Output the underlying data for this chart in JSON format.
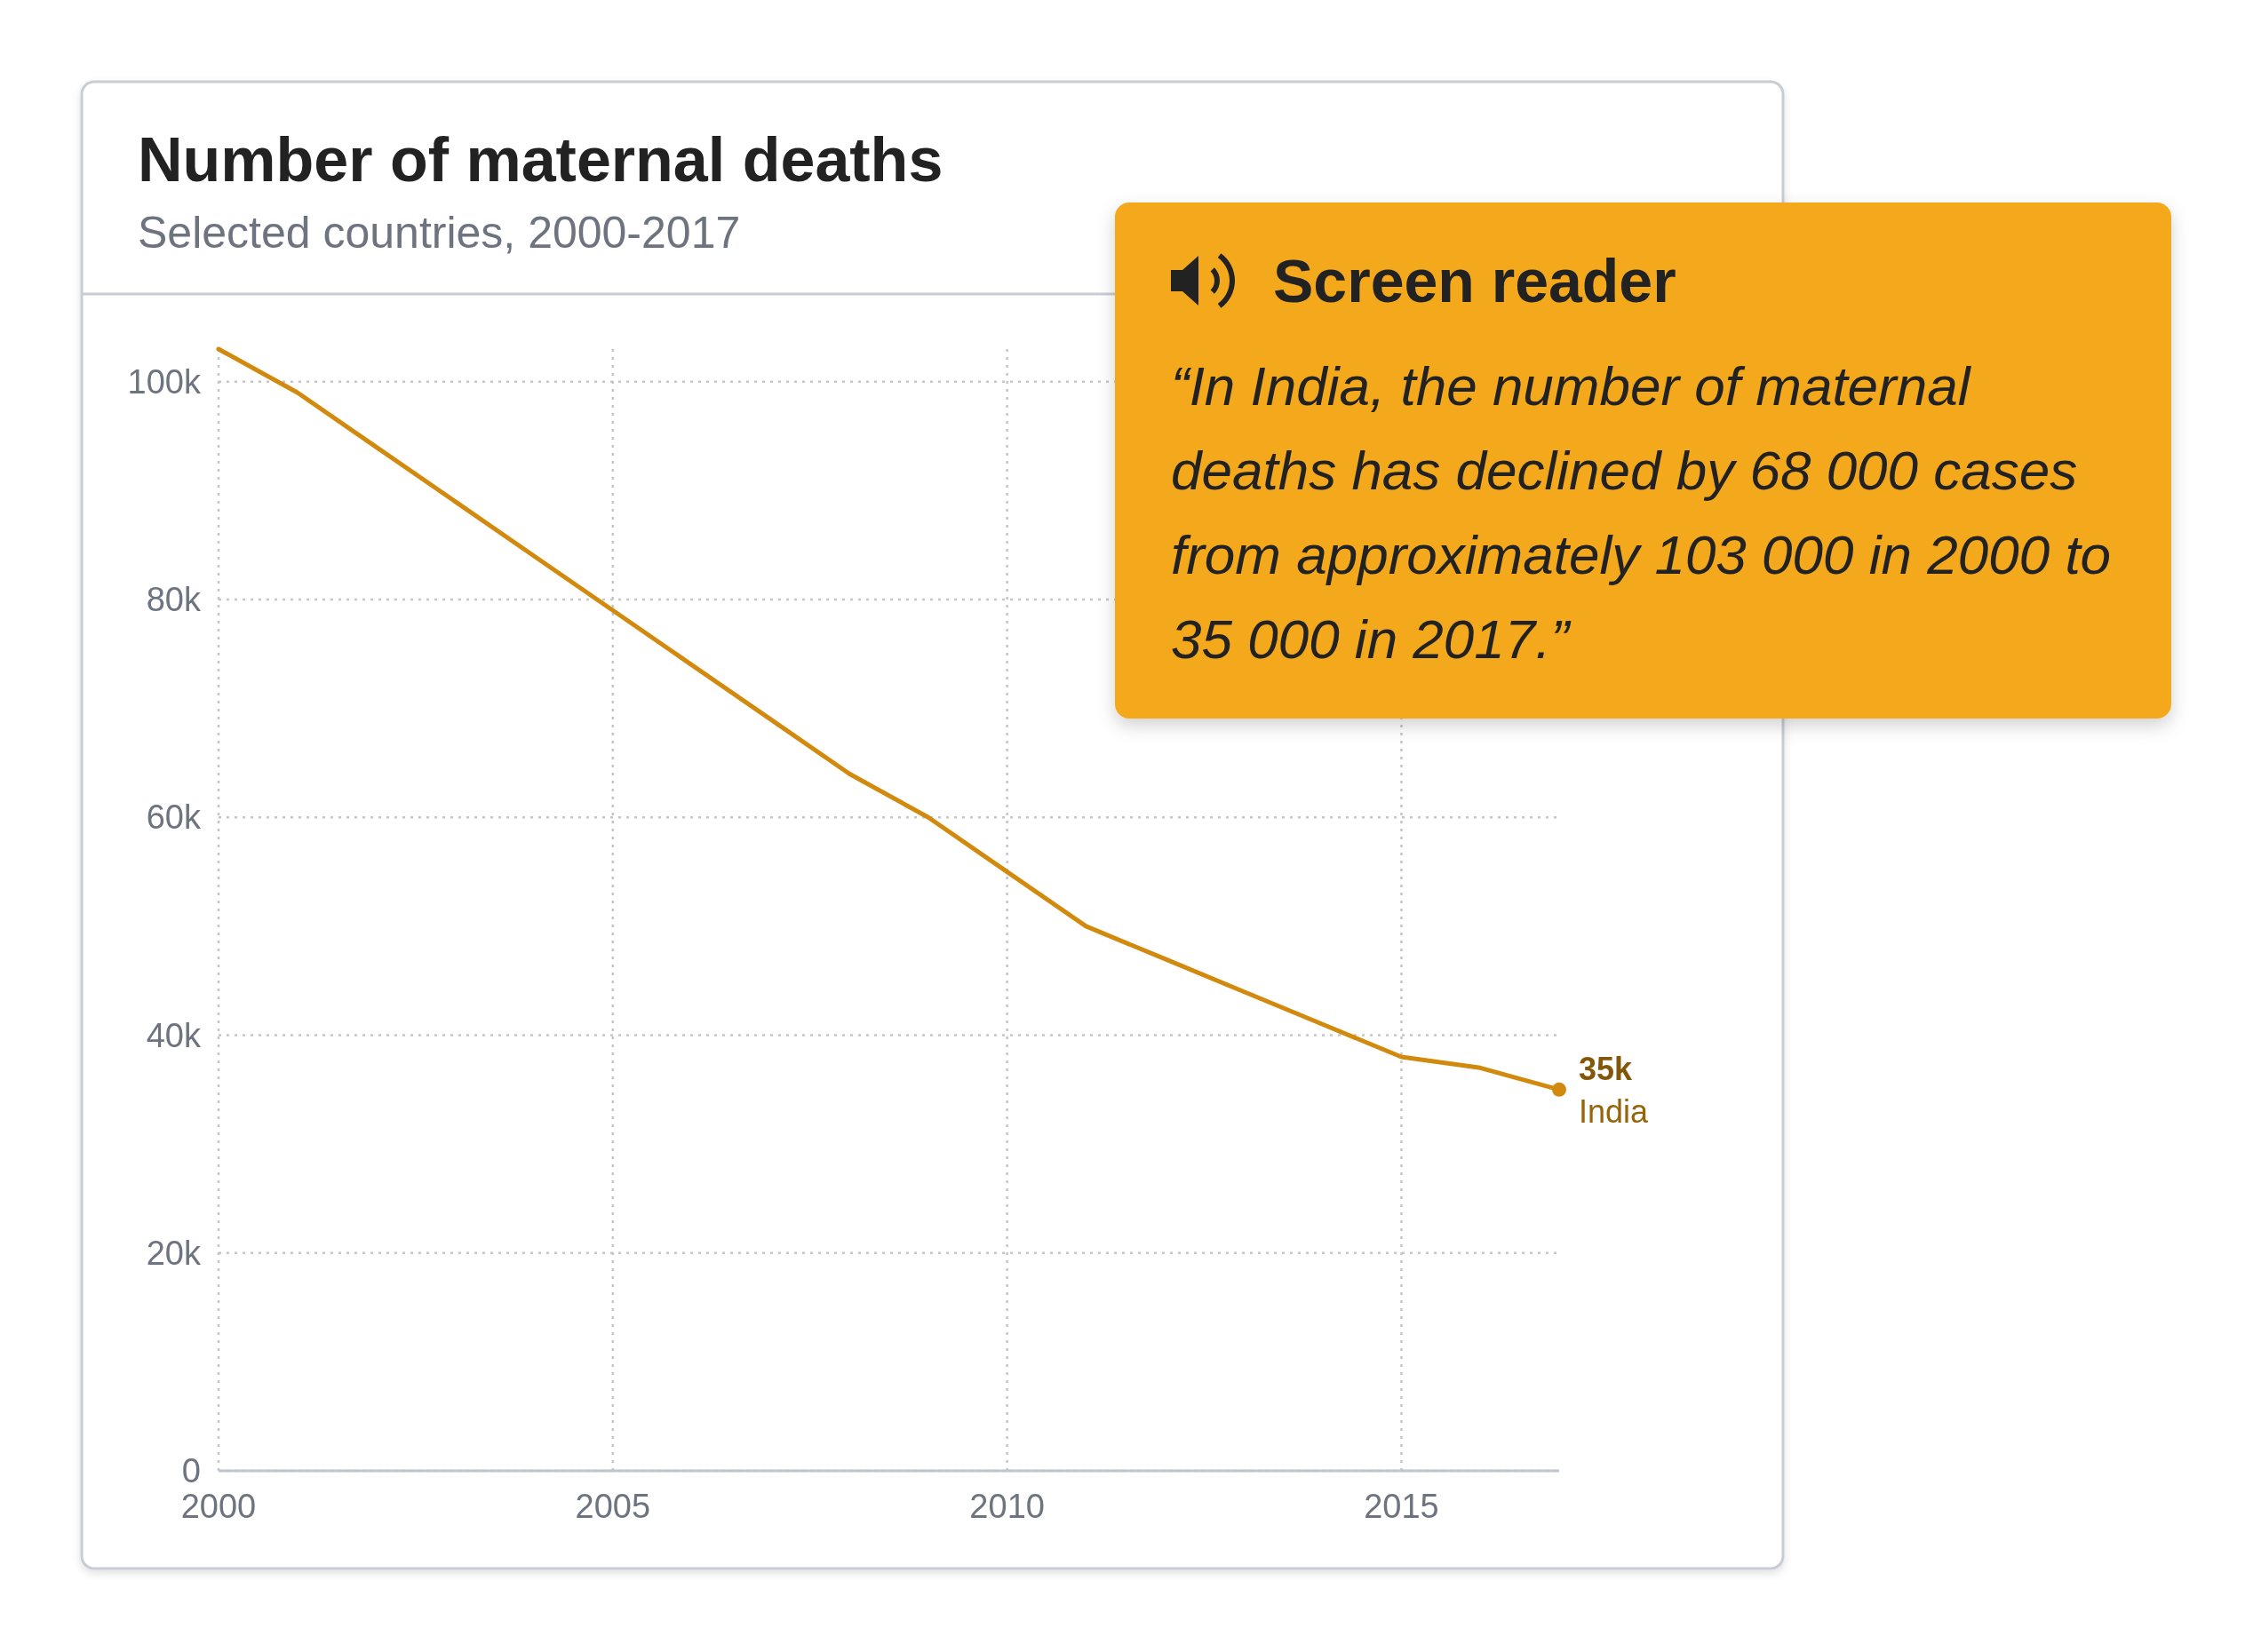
{
  "chart_data": {
    "type": "line",
    "title": "Number of maternal deaths",
    "subtitle": "Selected countries, 2000-2017",
    "x": [
      2000,
      2001,
      2002,
      2003,
      2004,
      2005,
      2006,
      2007,
      2008,
      2009,
      2010,
      2011,
      2012,
      2013,
      2014,
      2015,
      2016,
      2017
    ],
    "series": [
      {
        "name": "India",
        "color": "#d18a0d",
        "values": [
          103000,
          99000,
          94000,
          89000,
          84000,
          79000,
          74000,
          69000,
          64000,
          60000,
          55000,
          50000,
          47000,
          44000,
          41000,
          38000,
          37000,
          35000
        ]
      },
      {
        "type": "scatter",
        "color": "#d18a0d",
        "marker": "circle",
        "x": [
          2017
        ],
        "values": [
          35000
        ],
        "value_labels": [
          "35k"
        ]
      }
    ],
    "xlim": [
      2000,
      2017
    ],
    "ylim": [
      0,
      103000
    ],
    "xticks": [
      2000,
      2005,
      2010,
      2015
    ],
    "yticks": [
      0,
      {
        "value": 20000,
        "label": "20k"
      },
      {
        "value": 40000,
        "label": "40k"
      },
      {
        "value": 60000,
        "label": "60k"
      },
      {
        "value": 80000,
        "label": "80k"
      },
      {
        "value": 100000,
        "label": "100k"
      }
    ],
    "grid": true,
    "annotations": [
      "Screen reader",
      "“In India, the number of maternal deaths has declined by 68 000 cases from approximately 103 000 in 2000 to 35 000 in 2017.”"
    ]
  }
}
